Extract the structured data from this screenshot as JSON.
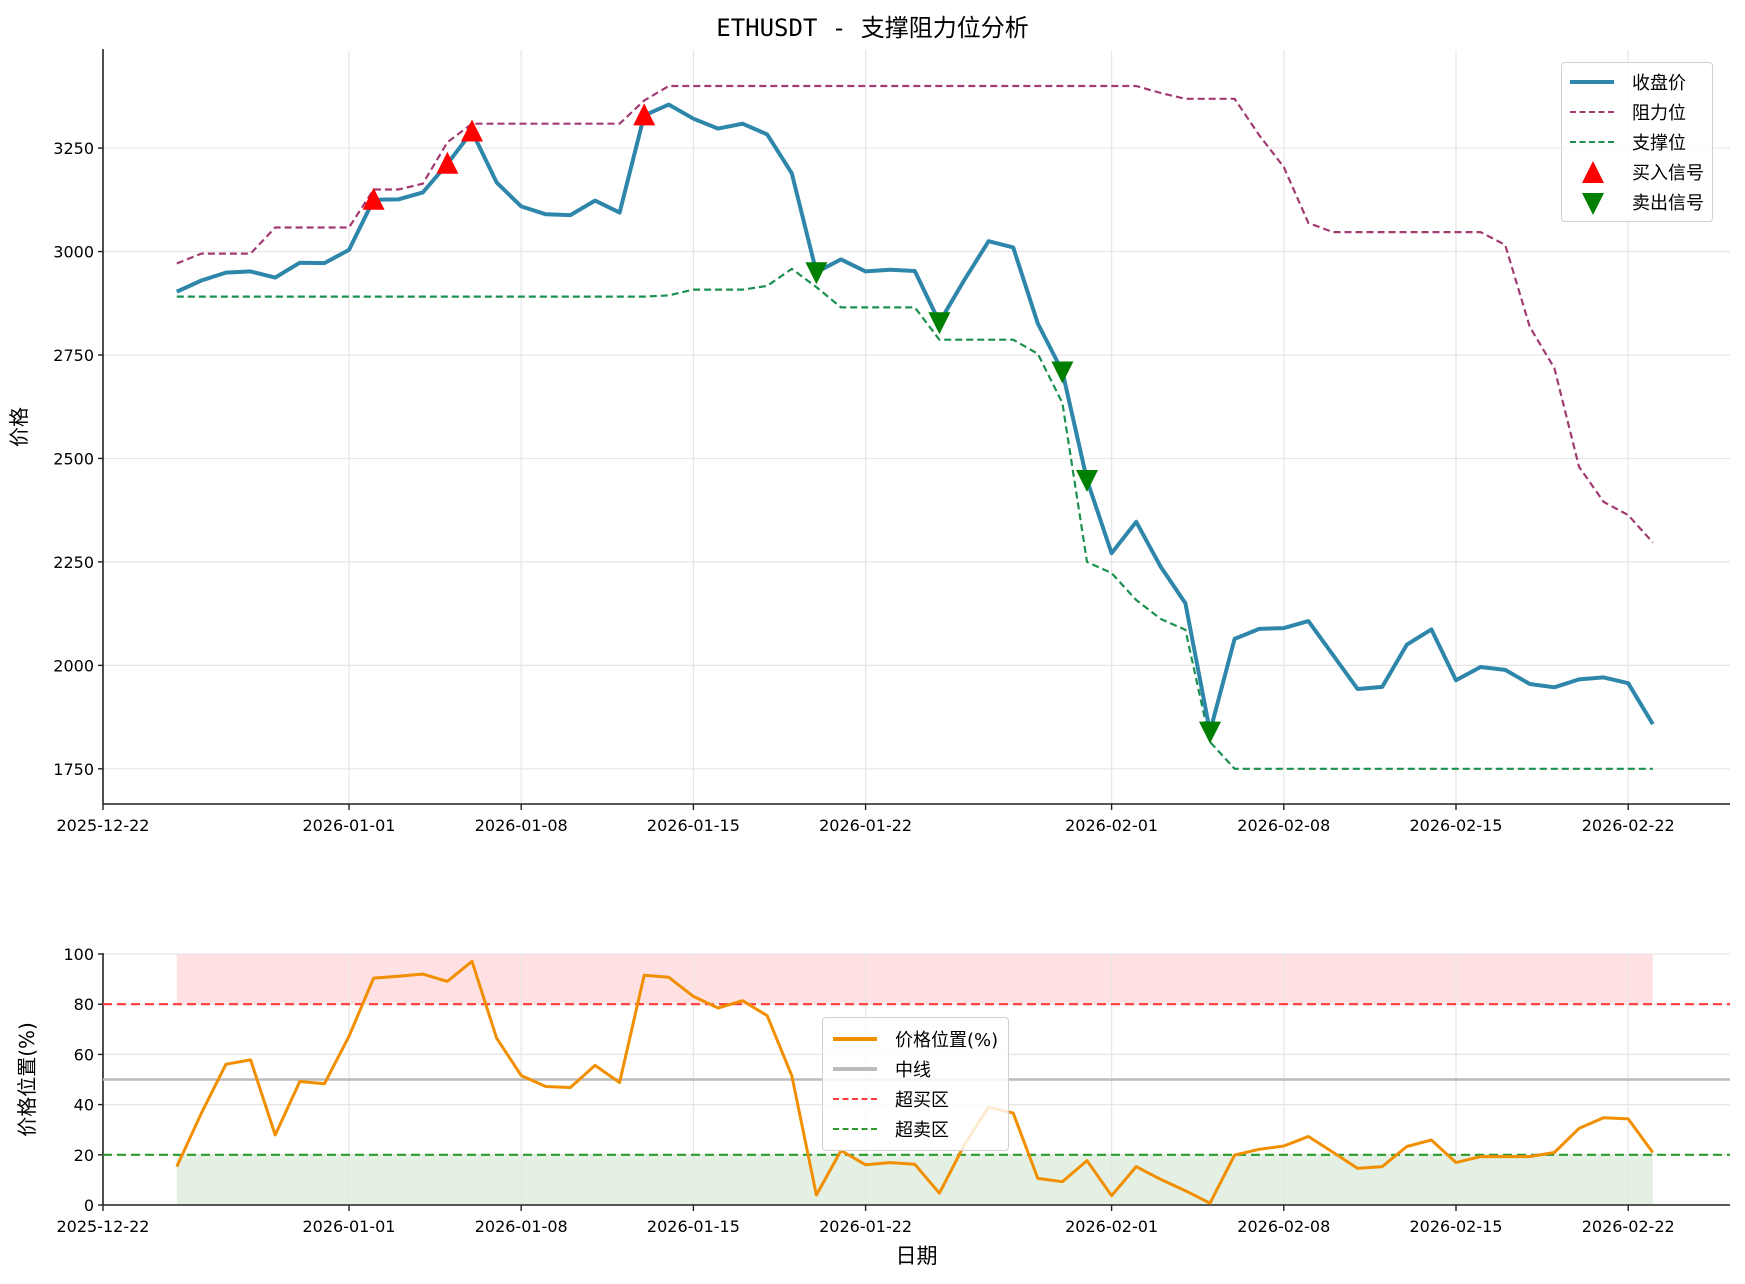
{
  "title": "ETHUSDT - 支撑阻力位分析",
  "colors": {
    "close": "#2E86AB",
    "resistance": "#A23B72",
    "support": "#1B9050",
    "buy": "#FF0000",
    "sell": "#008000",
    "position": "#F18F01",
    "midline": "#BBBBBB",
    "overbought": "#FF3B3B",
    "oversold": "#2E9A2E",
    "overbought_fill": "#FFE1E3",
    "oversold_fill": "#E3F0E3",
    "grid": "#E6E6E6",
    "axis": "#222222"
  },
  "top_legend": {
    "items": [
      {
        "label": "收盘价",
        "type": "solid",
        "color_key": "close"
      },
      {
        "label": "阻力位",
        "type": "dash",
        "color_key": "resistance"
      },
      {
        "label": "支撑位",
        "type": "dash",
        "color_key": "support"
      },
      {
        "label": "买入信号",
        "type": "up",
        "color_key": "buy"
      },
      {
        "label": "卖出信号",
        "type": "down",
        "color_key": "sell"
      }
    ]
  },
  "bottom_legend": {
    "items": [
      {
        "label": "价格位置(%)",
        "type": "solid",
        "color_key": "position"
      },
      {
        "label": "中线",
        "type": "solid",
        "color_key": "midline"
      },
      {
        "label": "超买区",
        "type": "dash",
        "color_key": "overbought"
      },
      {
        "label": "超卖区",
        "type": "dash",
        "color_key": "oversold"
      }
    ]
  },
  "chart_data": [
    {
      "type": "line",
      "title": "ETHUSDT - 支撑阻力位分析",
      "xlabel": "",
      "ylabel": "价格",
      "ylim": [
        1665,
        3487
      ],
      "yticks": [
        1750,
        2000,
        2250,
        2500,
        2750,
        3000,
        3250
      ],
      "xlim": [
        "2025-12-22",
        "2026-02-28"
      ],
      "xticks": [
        "2025-12-22",
        "2026-01-01",
        "2026-01-08",
        "2026-01-15",
        "2026-01-22",
        "2026-02-01",
        "2026-02-08",
        "2026-02-15",
        "2026-02-22"
      ],
      "grid": true,
      "legend_position": "upper right",
      "start_date": "2025-12-25",
      "x": [
        "2025-12-25",
        "2025-12-26",
        "2025-12-27",
        "2025-12-28",
        "2025-12-29",
        "2025-12-30",
        "2025-12-31",
        "2026-01-01",
        "2026-01-02",
        "2026-01-03",
        "2026-01-04",
        "2026-01-05",
        "2026-01-06",
        "2026-01-07",
        "2026-01-08",
        "2026-01-09",
        "2026-01-10",
        "2026-01-11",
        "2026-01-12",
        "2026-01-13",
        "2026-01-14",
        "2026-01-15",
        "2026-01-16",
        "2026-01-17",
        "2026-01-18",
        "2026-01-19",
        "2026-01-20",
        "2026-01-21",
        "2026-01-22",
        "2026-01-23",
        "2026-01-24",
        "2026-01-25",
        "2026-01-26",
        "2026-01-27",
        "2026-01-28",
        "2026-01-29",
        "2026-01-30",
        "2026-01-31",
        "2026-02-01",
        "2026-02-02",
        "2026-02-03",
        "2026-02-04",
        "2026-02-05",
        "2026-02-06",
        "2026-02-07",
        "2026-02-08",
        "2026-02-09",
        "2026-02-10",
        "2026-02-11",
        "2026-02-12",
        "2026-02-13",
        "2026-02-14",
        "2026-02-15",
        "2026-02-16",
        "2026-02-17",
        "2026-02-18",
        "2026-02-19",
        "2026-02-20",
        "2026-02-21",
        "2026-02-22",
        "2026-02-23"
      ],
      "series": [
        {
          "name": "收盘价",
          "style": "solid",
          "values": [
            2903,
            2930,
            2949,
            2952,
            2937,
            2973,
            2972,
            3004,
            3125,
            3126,
            3143,
            3212,
            3290,
            3167,
            3109,
            3090,
            3088,
            3123,
            3094,
            3329,
            3355,
            3321,
            3297,
            3309,
            3283,
            3189,
            2950,
            2981,
            2952,
            2956,
            2953,
            2829,
            2930,
            3025,
            3010,
            2826,
            2710,
            2448,
            2271,
            2347,
            2238,
            2150,
            1840,
            2064,
            2088,
            2090,
            2107,
            2025,
            1943,
            1948,
            2050,
            2087,
            1964,
            1996,
            1989,
            1955,
            1947,
            1966,
            1971,
            1957,
            1858
          ]
        },
        {
          "name": "阻力位",
          "style": "dashed",
          "values": [
            2971,
            2995,
            2995,
            2995,
            3058,
            3058,
            3058,
            3058,
            3150,
            3150,
            3164,
            3264,
            3309,
            3309,
            3309,
            3309,
            3309,
            3309,
            3309,
            3365,
            3400,
            3400,
            3400,
            3400,
            3400,
            3400,
            3400,
            3400,
            3400,
            3400,
            3400,
            3400,
            3400,
            3400,
            3400,
            3400,
            3400,
            3400,
            3400,
            3400,
            3383,
            3369,
            3369,
            3369,
            3281,
            3204,
            3069,
            3047,
            3047,
            3047,
            3047,
            3047,
            3047,
            3047,
            3016,
            2818,
            2718,
            2480,
            2395,
            2363,
            2297
          ]
        },
        {
          "name": "支撑位",
          "style": "dashed",
          "values": [
            2891,
            2891,
            2891,
            2891,
            2891,
            2891,
            2891,
            2891,
            2891,
            2891,
            2891,
            2891,
            2891,
            2891,
            2891,
            2891,
            2891,
            2891,
            2891,
            2891,
            2894,
            2908,
            2908,
            2908,
            2917,
            2958,
            2914,
            2865,
            2865,
            2865,
            2865,
            2787,
            2787,
            2787,
            2787,
            2753,
            2634,
            2250,
            2223,
            2158,
            2112,
            2086,
            1815,
            1750,
            1750,
            1750,
            1750,
            1750,
            1750,
            1750,
            1750,
            1750,
            1750,
            1750,
            1750,
            1750,
            1750,
            1750,
            1750,
            1750,
            1750
          ]
        }
      ],
      "markers": {
        "buy": [
          {
            "date": "2026-01-02",
            "value": 3125
          },
          {
            "date": "2026-01-05",
            "value": 3212
          },
          {
            "date": "2026-01-06",
            "value": 3290
          },
          {
            "date": "2026-01-13",
            "value": 3329
          }
        ],
        "sell": [
          {
            "date": "2026-01-20",
            "value": 2950
          },
          {
            "date": "2026-01-25",
            "value": 2829
          },
          {
            "date": "2026-01-30",
            "value": 2710
          },
          {
            "date": "2026-01-31",
            "value": 2448
          },
          {
            "date": "2026-02-05",
            "value": 1840
          }
        ]
      }
    },
    {
      "type": "line",
      "title": "",
      "xlabel": "日期",
      "ylabel": "价格位置(%)",
      "ylim": [
        0,
        100
      ],
      "yticks": [
        0,
        20,
        40,
        60,
        80,
        100
      ],
      "xticks": [
        "2025-12-22",
        "2026-01-01",
        "2026-01-08",
        "2026-01-15",
        "2026-01-22",
        "2026-02-01",
        "2026-02-08",
        "2026-02-15",
        "2026-02-22"
      ],
      "grid": true,
      "legend_position": "center",
      "start_date": "2025-12-25",
      "series": [
        {
          "name": "价格位置(%)",
          "style": "solid",
          "values": [
            15.3,
            36.6,
            56.1,
            57.8,
            27.9,
            49.2,
            48.3,
            67.2,
            90.4,
            91.1,
            92.0,
            89.1,
            97.1,
            66.5,
            51.6,
            47.2,
            46.8,
            55.6,
            48.8,
            91.5,
            90.7,
            83.1,
            78.5,
            81.4,
            75.4,
            51.5,
            4.0,
            21.7,
            16.0,
            16.9,
            16.2,
            4.7,
            23.7,
            39.0,
            36.6,
            10.6,
            9.3,
            17.7,
            3.7,
            15.3,
            10.2,
            5.7,
            0.7,
            19.9,
            22.2,
            23.5,
            27.3,
            21.0,
            14.6,
            15.3,
            23.3,
            25.9,
            16.9,
            19.3,
            19.3,
            19.3,
            20.9,
            30.5,
            34.8,
            34.3,
            20.9
          ]
        },
        {
          "name": "中线",
          "style": "solid",
          "constant": 50
        },
        {
          "name": "超买区",
          "style": "dashed",
          "constant": 80
        },
        {
          "name": "超卖区",
          "style": "dashed",
          "constant": 20
        }
      ],
      "bands": [
        {
          "from": 80,
          "to": 100,
          "label": "overbought zone"
        },
        {
          "from": 0,
          "to": 20,
          "label": "oversold zone"
        }
      ]
    }
  ]
}
